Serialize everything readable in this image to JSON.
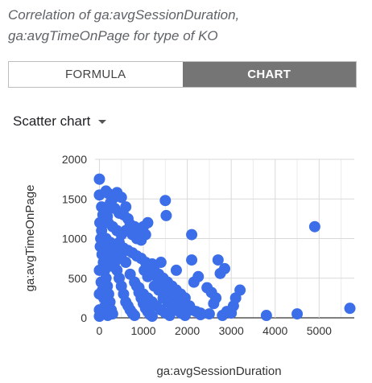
{
  "title": "Correlation of ga:avgSessionDuration, ga:avgTimeOnPage for type of KO",
  "tabs": {
    "formula": "FORMULA",
    "chart": "CHART",
    "active": "chart"
  },
  "chart_selector": {
    "label": "Scatter chart"
  },
  "colors": {
    "point": "#3b6ee8",
    "grid": "#d9d9d9",
    "active_tab": "#757575"
  },
  "chart_data": {
    "type": "scatter",
    "xlabel": "ga:avgSessionDuration",
    "ylabel": "ga:avgTimeOnPage",
    "xlim": [
      -100,
      5800
    ],
    "ylim": [
      0,
      2000
    ],
    "xticks": [
      0,
      1000,
      2000,
      3000,
      4000,
      5000
    ],
    "yticks": [
      0,
      500,
      1000,
      1500,
      2000
    ],
    "grid": true,
    "points": [
      [
        0,
        1750
      ],
      [
        0,
        1550
      ],
      [
        50,
        1400
      ],
      [
        120,
        1350
      ],
      [
        200,
        1570
      ],
      [
        150,
        1600
      ],
      [
        300,
        1500
      ],
      [
        400,
        1580
      ],
      [
        500,
        1520
      ],
      [
        600,
        1400
      ],
      [
        250,
        1450
      ],
      [
        350,
        1380
      ],
      [
        80,
        1300
      ],
      [
        180,
        1280
      ],
      [
        450,
        1320
      ],
      [
        550,
        1300
      ],
      [
        650,
        1250
      ],
      [
        700,
        1180
      ],
      [
        800,
        1150
      ],
      [
        900,
        1100
      ],
      [
        1000,
        1150
      ],
      [
        1100,
        1200
      ],
      [
        1050,
        1050
      ],
      [
        950,
        980
      ],
      [
        850,
        1000
      ],
      [
        750,
        1050
      ],
      [
        600,
        1100
      ],
      [
        500,
        1050
      ],
      [
        400,
        1100
      ],
      [
        300,
        1150
      ],
      [
        200,
        1200
      ],
      [
        100,
        1250
      ],
      [
        50,
        1100
      ],
      [
        150,
        1000
      ],
      [
        250,
        950
      ],
      [
        350,
        900
      ],
      [
        450,
        950
      ],
      [
        550,
        880
      ],
      [
        650,
        850
      ],
      [
        750,
        820
      ],
      [
        850,
        780
      ],
      [
        950,
        750
      ],
      [
        1050,
        700
      ],
      [
        1150,
        650
      ],
      [
        1250,
        600
      ],
      [
        1350,
        550
      ],
      [
        1450,
        500
      ],
      [
        1550,
        450
      ],
      [
        1650,
        400
      ],
      [
        1750,
        350
      ],
      [
        1850,
        300
      ],
      [
        1950,
        250
      ],
      [
        1020,
        600
      ],
      [
        1100,
        520
      ],
      [
        1200,
        680
      ],
      [
        1300,
        520
      ],
      [
        1400,
        420
      ],
      [
        1500,
        350
      ],
      [
        1600,
        300
      ],
      [
        1700,
        250
      ],
      [
        1800,
        200
      ],
      [
        1900,
        150
      ],
      [
        2000,
        120
      ],
      [
        2100,
        100
      ],
      [
        2200,
        80
      ],
      [
        2300,
        60
      ],
      [
        1500,
        1480
      ],
      [
        1520,
        1290
      ],
      [
        2100,
        1050
      ],
      [
        1400,
        700
      ],
      [
        1550,
        420
      ],
      [
        1750,
        600
      ],
      [
        2100,
        730
      ],
      [
        2150,
        450
      ],
      [
        2250,
        520
      ],
      [
        2450,
        380
      ],
      [
        2550,
        320
      ],
      [
        2700,
        730
      ],
      [
        2750,
        560
      ],
      [
        2850,
        620
      ],
      [
        2650,
        250
      ],
      [
        3200,
        350
      ],
      [
        3100,
        250
      ],
      [
        2900,
        80
      ],
      [
        2500,
        50
      ],
      [
        2300,
        40
      ],
      [
        2800,
        30
      ],
      [
        3000,
        60
      ],
      [
        3800,
        30
      ],
      [
        4500,
        50
      ],
      [
        4900,
        1150
      ],
      [
        5700,
        120
      ],
      [
        2050,
        150
      ],
      [
        1950,
        60
      ],
      [
        2600,
        180
      ],
      [
        3050,
        150
      ],
      [
        20,
        900
      ],
      [
        60,
        800
      ],
      [
        90,
        700
      ],
      [
        120,
        600
      ],
      [
        150,
        500
      ],
      [
        180,
        400
      ],
      [
        210,
        300
      ],
      [
        240,
        200
      ],
      [
        270,
        100
      ],
      [
        300,
        50
      ],
      [
        40,
        450
      ],
      [
        70,
        350
      ],
      [
        100,
        250
      ],
      [
        130,
        150
      ],
      [
        160,
        80
      ],
      [
        190,
        30
      ],
      [
        350,
        700
      ],
      [
        400,
        600
      ],
      [
        450,
        500
      ],
      [
        500,
        400
      ],
      [
        550,
        300
      ],
      [
        600,
        200
      ],
      [
        650,
        150
      ],
      [
        700,
        100
      ],
      [
        750,
        60
      ],
      [
        800,
        30
      ],
      [
        850,
        400
      ],
      [
        900,
        320
      ],
      [
        950,
        250
      ],
      [
        1000,
        180
      ],
      [
        1050,
        120
      ],
      [
        1100,
        80
      ],
      [
        1150,
        40
      ],
      [
        1200,
        20
      ],
      [
        600,
        700
      ],
      [
        700,
        550
      ],
      [
        800,
        450
      ],
      [
        900,
        380
      ],
      [
        1000,
        300
      ],
      [
        1100,
        250
      ],
      [
        1200,
        200
      ],
      [
        1300,
        150
      ],
      [
        1400,
        100
      ],
      [
        1500,
        60
      ],
      [
        1600,
        30
      ],
      [
        400,
        800
      ],
      [
        500,
        750
      ],
      [
        300,
        650
      ],
      [
        250,
        750
      ],
      [
        200,
        850
      ],
      [
        100,
        950
      ],
      [
        30,
        1000
      ],
      [
        10,
        1200
      ],
      [
        0,
        600
      ],
      [
        0,
        300
      ],
      [
        0,
        100
      ],
      [
        0,
        20
      ],
      [
        1250,
        400
      ],
      [
        1350,
        350
      ],
      [
        1450,
        250
      ],
      [
        1550,
        200
      ],
      [
        1650,
        150
      ],
      [
        1750,
        100
      ],
      [
        1850,
        60
      ],
      [
        1950,
        30
      ]
    ]
  }
}
